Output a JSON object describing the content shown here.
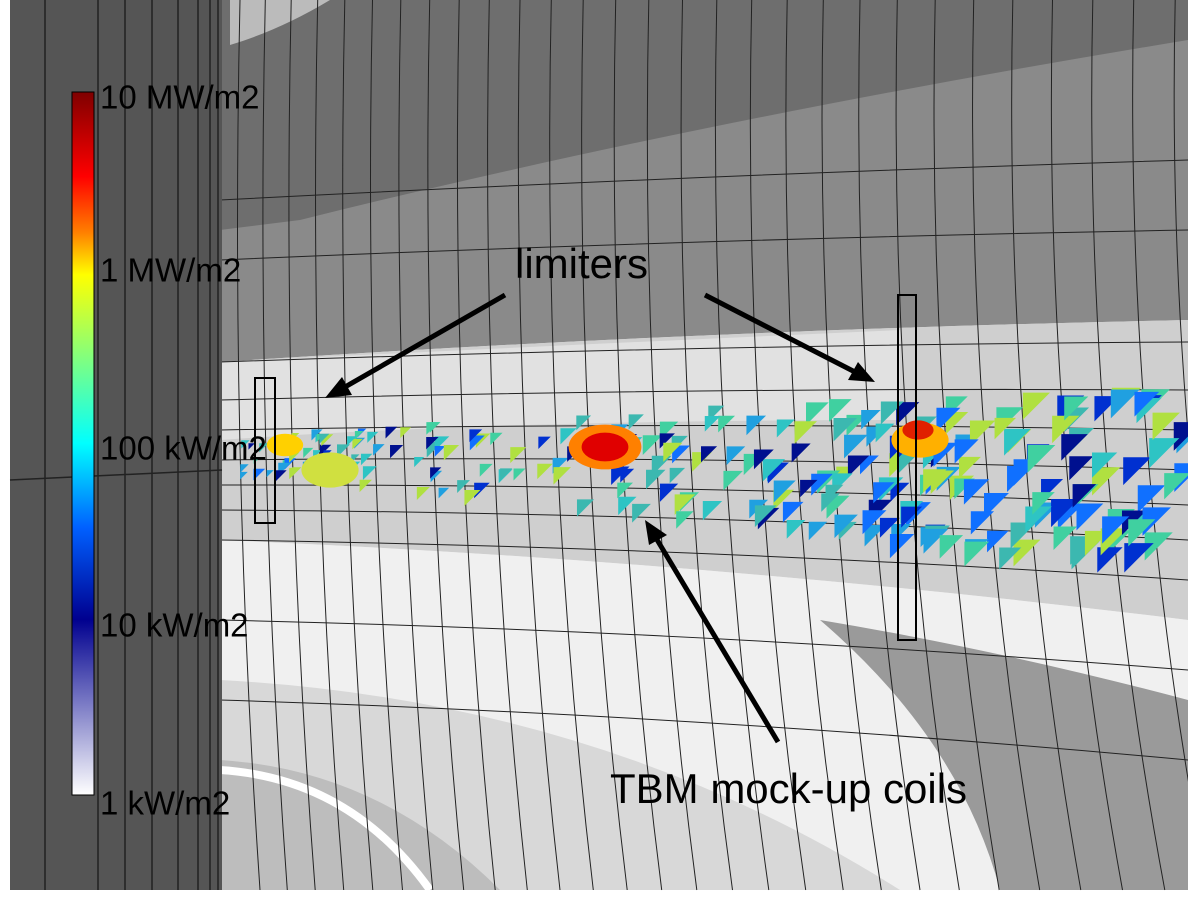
{
  "colorbar": {
    "labels": [
      "10 MW/m2",
      "1 MW/m2",
      "100 kW/m2",
      "10 kW/m2",
      "1 kW/m2"
    ]
  },
  "annotations": {
    "limiters": "limiters",
    "coils": "TBM mock-up coils"
  }
}
